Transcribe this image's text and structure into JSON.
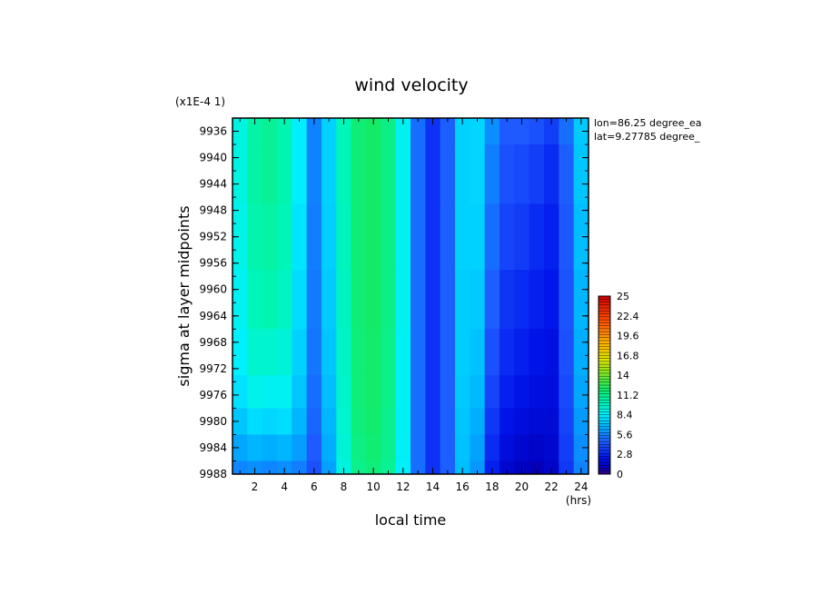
{
  "chart_data": {
    "type": "heatmap",
    "title": "wind velocity",
    "xlabel": "local time",
    "ylabel": "sigma at layer midpoints",
    "x_unit": "(hrs)",
    "y_scale_note": "(x1E-4 1)",
    "annotations": [
      "lon=86.25 degree_ea",
      "lat=9.27785 degree_"
    ],
    "xlim": [
      0.5,
      24.5
    ],
    "ylim": [
      9988,
      9934
    ],
    "x_ticks": [
      "2",
      "4",
      "6",
      "8",
      "10",
      "12",
      "14",
      "16",
      "18",
      "20",
      "22",
      "24"
    ],
    "y_ticks": [
      "9936",
      "9940",
      "9944",
      "9948",
      "9952",
      "9956",
      "9960",
      "9964",
      "9968",
      "9972",
      "9976",
      "9980",
      "9984",
      "9988"
    ],
    "colorbar": {
      "min": 0,
      "max": 25,
      "tick_labels": [
        "25",
        "22.4",
        "19.6",
        "16.8",
        "14",
        "11.2",
        "8.4",
        "5.6",
        "2.8",
        "0"
      ]
    },
    "x": [
      1,
      2,
      3,
      4,
      5,
      6,
      7,
      8,
      9,
      10,
      11,
      12,
      13,
      14,
      15,
      16,
      17,
      18,
      19,
      20,
      21,
      22,
      23,
      24
    ],
    "y": [
      9934,
      9942,
      9952,
      9962,
      9970,
      9976,
      9980,
      9984,
      9988
    ],
    "values": [
      [
        9.0,
        10.5,
        10.8,
        10.2,
        8.2,
        5.5,
        7.5,
        10.0,
        11.6,
        12.0,
        11.2,
        8.6,
        5.0,
        3.2,
        4.6,
        7.5,
        7.6,
        5.8,
        4.5,
        4.5,
        4.2,
        3.6,
        5.0,
        7.3
      ],
      [
        9.0,
        10.5,
        10.8,
        10.2,
        8.2,
        5.5,
        7.5,
        10.0,
        11.6,
        12.0,
        11.2,
        8.6,
        5.0,
        3.2,
        4.6,
        7.5,
        7.6,
        5.4,
        4.2,
        4.0,
        3.6,
        3.0,
        4.6,
        7.2
      ],
      [
        8.8,
        10.3,
        10.5,
        10.0,
        8.0,
        5.4,
        7.4,
        9.9,
        11.6,
        12.0,
        11.2,
        8.6,
        5.0,
        3.2,
        4.6,
        7.5,
        7.5,
        5.0,
        3.8,
        3.5,
        3.0,
        2.6,
        4.4,
        7.0
      ],
      [
        8.6,
        10.0,
        10.2,
        9.7,
        7.8,
        5.3,
        7.3,
        9.8,
        11.6,
        12.0,
        11.2,
        8.6,
        5.0,
        3.2,
        4.6,
        7.4,
        7.3,
        4.6,
        3.3,
        3.0,
        2.6,
        2.3,
        4.3,
        6.8
      ],
      [
        8.3,
        9.5,
        9.5,
        9.2,
        7.5,
        5.2,
        7.2,
        9.7,
        11.5,
        11.9,
        11.1,
        8.5,
        5.0,
        3.2,
        4.6,
        7.4,
        7.1,
        4.2,
        3.0,
        2.6,
        2.2,
        2.0,
        4.2,
        6.6
      ],
      [
        7.9,
        8.8,
        8.6,
        8.6,
        7.2,
        5.0,
        7.0,
        9.6,
        11.5,
        11.9,
        11.1,
        8.5,
        5.0,
        3.2,
        4.6,
        7.3,
        6.9,
        3.8,
        2.6,
        2.2,
        1.9,
        1.8,
        4.0,
        6.4
      ],
      [
        7.2,
        7.8,
        7.6,
        7.8,
        6.8,
        4.8,
        6.8,
        9.5,
        11.4,
        11.8,
        11.0,
        8.5,
        5.0,
        3.2,
        4.6,
        7.2,
        6.6,
        3.4,
        2.2,
        1.8,
        1.6,
        1.6,
        3.8,
        6.1
      ],
      [
        6.4,
        6.8,
        6.6,
        6.8,
        6.2,
        4.5,
        6.6,
        9.3,
        11.3,
        11.7,
        11.0,
        8.4,
        5.0,
        3.2,
        4.6,
        7.1,
        6.3,
        3.0,
        1.8,
        1.4,
        1.2,
        1.4,
        3.6,
        5.8
      ],
      [
        5.6,
        5.8,
        5.6,
        5.8,
        5.4,
        4.2,
        6.3,
        9.0,
        11.1,
        11.5,
        10.8,
        8.3,
        5.0,
        3.2,
        4.6,
        7.0,
        6.0,
        2.6,
        1.4,
        1.0,
        0.8,
        1.2,
        3.4,
        5.5
      ]
    ]
  }
}
